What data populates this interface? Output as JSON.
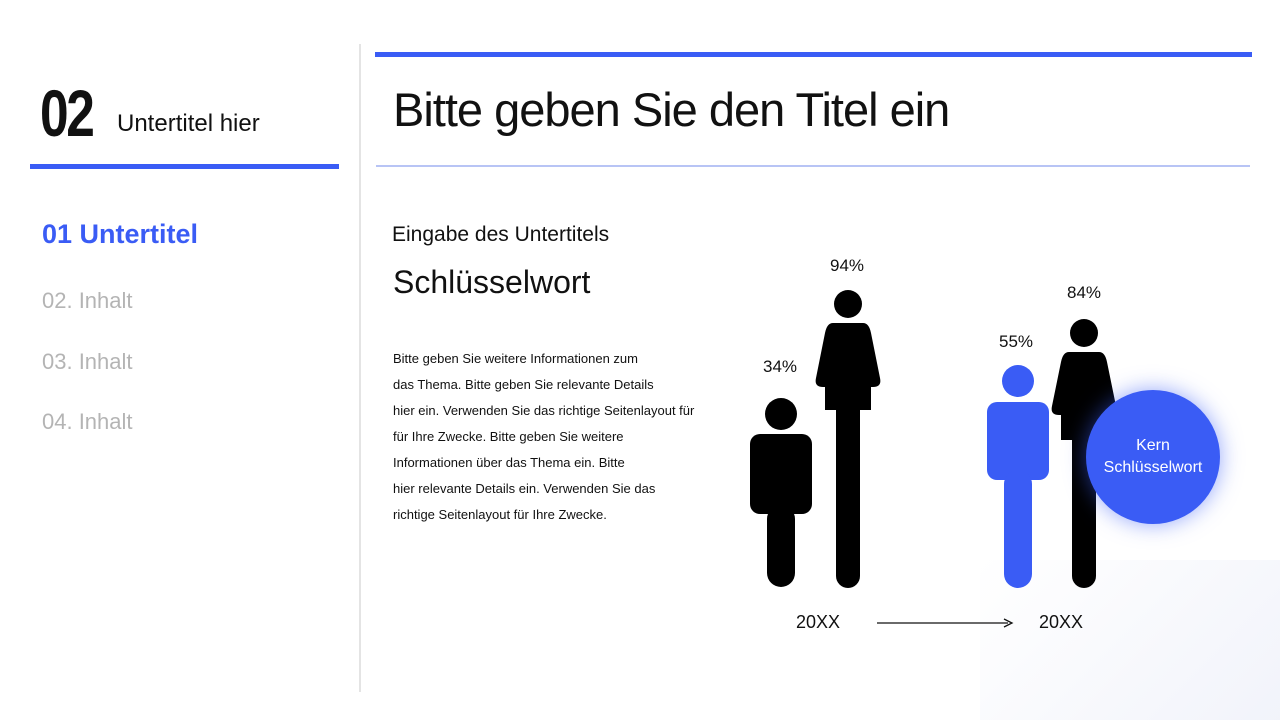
{
  "section": {
    "number": "02",
    "subtitle": "Untertitel hier"
  },
  "title": "Bitte geben Sie den Titel ein",
  "nav": [
    {
      "label": "01 Untertitel",
      "active": true
    },
    {
      "label": "02. Inhalt",
      "active": false
    },
    {
      "label": "03. Inhalt",
      "active": false
    },
    {
      "label": "04. Inhalt",
      "active": false
    }
  ],
  "content": {
    "subheading": "Eingabe des Untertitels",
    "keyword": "Schlüsselwort",
    "body_lines": [
      "Bitte geben Sie weitere Informationen zum",
      "das Thema. Bitte geben Sie relevante Details",
      "hier ein. Verwenden Sie das richtige Seitenlayout für",
      "für Ihre Zwecke. Bitte geben Sie weitere",
      "Informationen über das Thema ein. Bitte",
      "hier relevante Details ein. Verwenden Sie das",
      "richtige Seitenlayout für Ihre Zwecke."
    ]
  },
  "figures": {
    "group1": {
      "year": "20XX",
      "male": {
        "value": "34%",
        "color": "#000000"
      },
      "female": {
        "value": "94%",
        "color": "#000000"
      }
    },
    "group2": {
      "year": "20XX",
      "male": {
        "value": "55%",
        "color": "#3a5cf5"
      },
      "female": {
        "value": "84%",
        "color": "#000000"
      }
    }
  },
  "bubble": {
    "line1": "Kern",
    "line2": "Schlüsselwort",
    "color": "#3a5cf5"
  },
  "colors": {
    "accent": "#3a5cf5",
    "muted": "#b4b4b4"
  }
}
